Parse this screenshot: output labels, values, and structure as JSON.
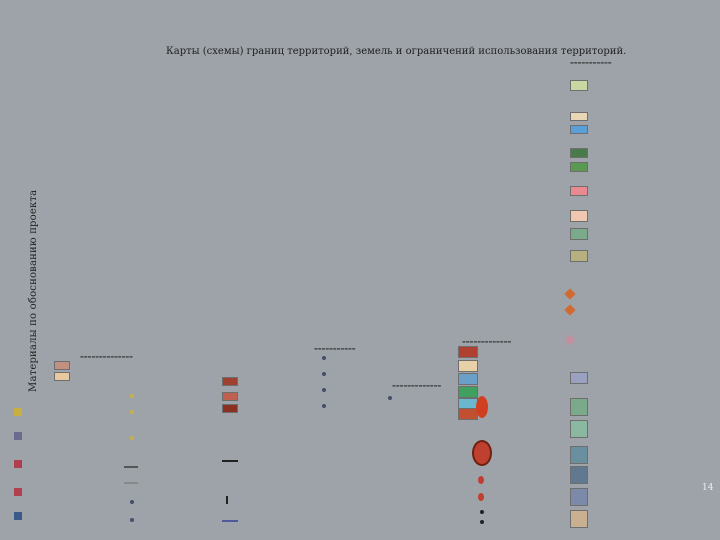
{
  "header": {
    "vertical_title": "Материалы по обоснованию проекта",
    "map_title": "Карты (схемы) границ территорий, земель и ограничений использования территорий."
  },
  "page": {
    "number": "14"
  },
  "colors": {
    "background": "#9da3a8",
    "legend_swatches": [
      "#c7d9a0",
      "#e9d6b5",
      "#5aa0d8",
      "#4a7a4a",
      "#5a9a50",
      "#e88a90",
      "#c0a080",
      "#f0c8b0",
      "#7aaa8a",
      "#b8b080",
      "#b04030",
      "#c05030",
      "#e8d0a8",
      "#6aa0c8",
      "#40a060",
      "#8ab8a0",
      "#607890",
      "#c8b090"
    ]
  }
}
